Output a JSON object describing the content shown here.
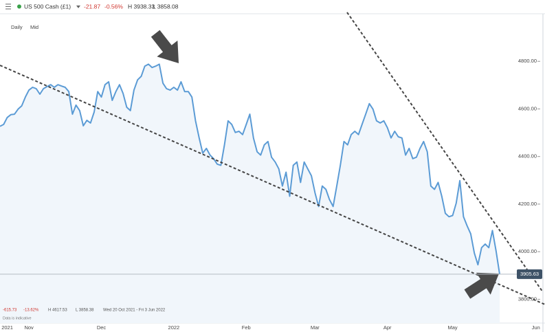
{
  "header": {
    "instrument": "US 500 Cash (£1)",
    "change": "-21.87",
    "change_pct": "-0.56%",
    "high": "H 3938.33",
    "low": "L 3858.08"
  },
  "chart_data": {
    "type": "line",
    "interval": "Daily",
    "price_type": "Mid",
    "color": "#5b9bd5",
    "fill": "#f1f6fb",
    "categories": [
      null,
      null,
      "2021",
      null,
      null,
      null,
      null,
      null,
      "Nov",
      null,
      null,
      null,
      null,
      null,
      null,
      null,
      null,
      null,
      null,
      null,
      null,
      null,
      null,
      null,
      null,
      null,
      null,
      null,
      "Dec",
      null,
      null,
      null,
      null,
      null,
      null,
      null,
      null,
      null,
      null,
      null,
      null,
      null,
      null,
      null,
      null,
      null,
      null,
      null,
      "2022",
      null,
      null,
      null,
      null,
      null,
      null,
      null,
      null,
      null,
      null,
      null,
      null,
      null,
      null,
      null,
      null,
      null,
      null,
      null,
      "Feb",
      null,
      null,
      null,
      null,
      null,
      null,
      null,
      null,
      null,
      null,
      null,
      null,
      null,
      null,
      null,
      null,
      null,
      null,
      "Mar",
      null,
      null,
      null,
      null,
      null,
      null,
      null,
      null,
      null,
      null,
      null,
      null,
      null,
      null,
      null,
      null,
      null,
      null,
      null,
      "Apr",
      null,
      null,
      null,
      null,
      null,
      null,
      null,
      null,
      null,
      null,
      null,
      null,
      null,
      null,
      null,
      null,
      null,
      "May",
      null,
      null,
      null,
      null,
      null,
      null,
      null,
      null,
      null,
      null,
      null,
      null,
      null,
      null,
      null,
      null,
      null,
      null,
      null,
      null,
      null,
      null,
      "Jun",
      null
    ],
    "values": [
      4527,
      4535,
      4564,
      4576,
      4578,
      4599,
      4613,
      4650,
      4679,
      4691,
      4685,
      4662,
      4685,
      4694,
      4702,
      4691,
      4702,
      4696,
      4691,
      4673,
      4578,
      4616,
      4593,
      4529,
      4552,
      4541,
      4587,
      4673,
      4650,
      4702,
      4714,
      4636,
      4673,
      4702,
      4665,
      4607,
      4593,
      4679,
      4722,
      4737,
      4780,
      4788,
      4774,
      4780,
      4788,
      4708,
      4685,
      4679,
      4691,
      4679,
      4714,
      4673,
      4673,
      4650,
      4550,
      4478,
      4414,
      4434,
      4406,
      4391,
      4368,
      4363,
      4449,
      4550,
      4535,
      4501,
      4506,
      4492,
      4535,
      4578,
      4478,
      4420,
      4406,
      4449,
      4463,
      4397,
      4377,
      4348,
      4276,
      4334,
      4233,
      4363,
      4377,
      4291,
      4377,
      4348,
      4319,
      4247,
      4190,
      4276,
      4262,
      4219,
      4190,
      4276,
      4363,
      4463,
      4449,
      4492,
      4506,
      4492,
      4535,
      4578,
      4622,
      4599,
      4550,
      4541,
      4550,
      4521,
      4478,
      4506,
      4483,
      4478,
      4406,
      4434,
      4391,
      4397,
      4434,
      4463,
      4420,
      4276,
      4262,
      4291,
      4233,
      4161,
      4147,
      4152,
      4204,
      4299,
      4147,
      4109,
      4075,
      3994,
      3945,
      4017,
      4032,
      4017,
      4089,
      4003,
      3905.63,
      null,
      null,
      null,
      null,
      null,
      null,
      null,
      null,
      null,
      null,
      null
    ],
    "ylim": [
      3700,
      5000
    ],
    "yticks": [
      {
        "value": 3800,
        "label": "3800.00"
      },
      {
        "value": 4000,
        "label": "4000.00"
      },
      {
        "value": 4200,
        "label": "4200.00"
      },
      {
        "value": 4400,
        "label": "4400.00"
      },
      {
        "value": 4600,
        "label": "4600.00"
      },
      {
        "value": 4800,
        "label": "4800.00"
      }
    ],
    "grid": false,
    "last_price_line": true
  },
  "footer": {
    "change": "-615.73",
    "change_pct": "-13.62%",
    "high": "H 4617.53",
    "low": "L 3858.38",
    "range": "Wed 20 Oct 2021 - Fri 3 Jun 2022",
    "note": "Data is indicative"
  }
}
